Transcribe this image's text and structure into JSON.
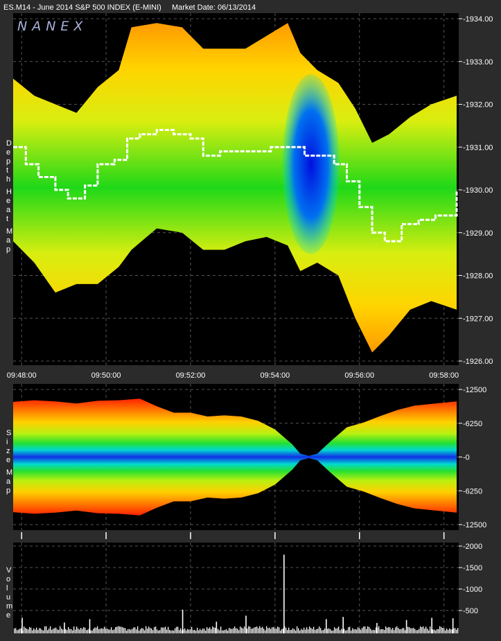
{
  "header": {
    "symbol_title": "ES.M14 - June 2014 S&P 500 INDEX (E-MINI)",
    "market_date": "Market Date: 06/13/2014"
  },
  "logo": "NANEX",
  "colors": {
    "background": "#2b2b2b",
    "plot_bg": "#000000",
    "gridline": "#555555",
    "price_line": "#ffffff",
    "volume_bars": "#ffffff"
  },
  "chart_data": [
    {
      "type": "heatmap",
      "name": "depth-heat-map",
      "side_label": "Depth Heat Map",
      "x_ticks": [
        "09:48:00",
        "09:50:00",
        "09:52:00",
        "09:54:00",
        "09:56:00",
        "09:58:00"
      ],
      "y_ticks": [
        "1934.00",
        "1933.00",
        "1932.00",
        "1931.00",
        "1930.00",
        "1929.00",
        "1928.00",
        "1927.00",
        "1926.00"
      ],
      "ylim": [
        1926.0,
        1934.0
      ],
      "xlim_minutes": [
        47.8,
        58.35
      ],
      "book_top": [
        [
          47.8,
          1932.6
        ],
        [
          48.3,
          1932.2
        ],
        [
          48.8,
          1932.0
        ],
        [
          49.3,
          1931.8
        ],
        [
          49.8,
          1932.4
        ],
        [
          50.3,
          1932.8
        ],
        [
          50.6,
          1933.8
        ],
        [
          51.2,
          1933.9
        ],
        [
          51.8,
          1933.8
        ],
        [
          52.3,
          1933.3
        ],
        [
          52.8,
          1933.3
        ],
        [
          53.3,
          1933.3
        ],
        [
          53.8,
          1933.6
        ],
        [
          54.3,
          1933.9
        ],
        [
          54.6,
          1933.2
        ],
        [
          55.0,
          1932.8
        ],
        [
          55.5,
          1932.5
        ],
        [
          55.9,
          1931.9
        ],
        [
          56.3,
          1931.1
        ],
        [
          56.7,
          1931.3
        ],
        [
          57.2,
          1931.7
        ],
        [
          57.7,
          1932.0
        ],
        [
          58.3,
          1932.2
        ]
      ],
      "book_bottom": [
        [
          47.8,
          1928.8
        ],
        [
          48.3,
          1928.3
        ],
        [
          48.8,
          1927.6
        ],
        [
          49.3,
          1927.8
        ],
        [
          49.8,
          1927.8
        ],
        [
          50.3,
          1928.2
        ],
        [
          50.6,
          1928.6
        ],
        [
          51.2,
          1929.1
        ],
        [
          51.8,
          1929.0
        ],
        [
          52.3,
          1928.6
        ],
        [
          52.8,
          1928.6
        ],
        [
          53.3,
          1928.8
        ],
        [
          53.8,
          1928.9
        ],
        [
          54.3,
          1928.7
        ],
        [
          54.6,
          1928.1
        ],
        [
          55.0,
          1928.3
        ],
        [
          55.5,
          1928.0
        ],
        [
          55.9,
          1927.0
        ],
        [
          56.3,
          1926.2
        ],
        [
          56.7,
          1926.6
        ],
        [
          57.2,
          1927.2
        ],
        [
          57.7,
          1927.4
        ],
        [
          58.3,
          1927.2
        ]
      ],
      "price": [
        [
          47.8,
          1931.0
        ],
        [
          48.1,
          1930.6
        ],
        [
          48.4,
          1930.3
        ],
        [
          48.8,
          1930.0
        ],
        [
          49.1,
          1929.8
        ],
        [
          49.5,
          1930.1
        ],
        [
          49.8,
          1930.6
        ],
        [
          50.2,
          1930.7
        ],
        [
          50.5,
          1931.2
        ],
        [
          50.8,
          1931.3
        ],
        [
          51.2,
          1931.4
        ],
        [
          51.6,
          1931.3
        ],
        [
          52.0,
          1931.2
        ],
        [
          52.3,
          1930.8
        ],
        [
          52.7,
          1930.9
        ],
        [
          53.1,
          1930.9
        ],
        [
          53.5,
          1930.9
        ],
        [
          53.9,
          1931.0
        ],
        [
          54.3,
          1931.0
        ],
        [
          54.7,
          1930.8
        ],
        [
          55.1,
          1930.8
        ],
        [
          55.4,
          1930.6
        ],
        [
          55.7,
          1930.2
        ],
        [
          56.0,
          1929.6
        ],
        [
          56.3,
          1929.0
        ],
        [
          56.6,
          1928.8
        ],
        [
          57.0,
          1929.2
        ],
        [
          57.4,
          1929.3
        ],
        [
          57.8,
          1929.4
        ],
        [
          58.3,
          1930.0
        ]
      ]
    },
    {
      "type": "area",
      "name": "size-map",
      "side_label": "Size Map",
      "y_ticks": [
        "12500",
        "6250",
        "0",
        "-6250",
        "-12500"
      ],
      "ylim": [
        -12500,
        12500
      ],
      "size_profile": [
        [
          47.8,
          10200
        ],
        [
          48.3,
          10500
        ],
        [
          48.8,
          10300
        ],
        [
          49.3,
          9900
        ],
        [
          49.8,
          10400
        ],
        [
          50.3,
          10500
        ],
        [
          50.8,
          10800
        ],
        [
          51.2,
          9400
        ],
        [
          51.6,
          8200
        ],
        [
          52.0,
          8200
        ],
        [
          52.4,
          7500
        ],
        [
          52.8,
          7700
        ],
        [
          53.2,
          7500
        ],
        [
          53.6,
          6700
        ],
        [
          54.0,
          5100
        ],
        [
          54.4,
          2400
        ],
        [
          54.6,
          600
        ],
        [
          54.8,
          200
        ],
        [
          55.0,
          600
        ],
        [
          55.3,
          2800
        ],
        [
          55.7,
          5500
        ],
        [
          56.1,
          6400
        ],
        [
          56.5,
          7600
        ],
        [
          56.9,
          8700
        ],
        [
          57.3,
          9500
        ],
        [
          57.8,
          9900
        ],
        [
          58.3,
          10300
        ]
      ]
    },
    {
      "type": "bar",
      "name": "volume",
      "side_label": "Volume",
      "y_ticks": [
        "2000",
        "1500",
        "1000",
        "500"
      ],
      "ylim": [
        0,
        2000
      ],
      "spikes": [
        [
          54.2,
          1800
        ],
        [
          53.3,
          380
        ],
        [
          49.6,
          300
        ],
        [
          48.0,
          330
        ],
        [
          51.8,
          520
        ],
        [
          55.6,
          350
        ],
        [
          57.1,
          280
        ],
        [
          57.7,
          330
        ],
        [
          58.2,
          320
        ],
        [
          55.2,
          300
        ],
        [
          56.4,
          210
        ],
        [
          52.6,
          240
        ],
        [
          49.0,
          220
        ]
      ],
      "baseline": 120
    }
  ]
}
